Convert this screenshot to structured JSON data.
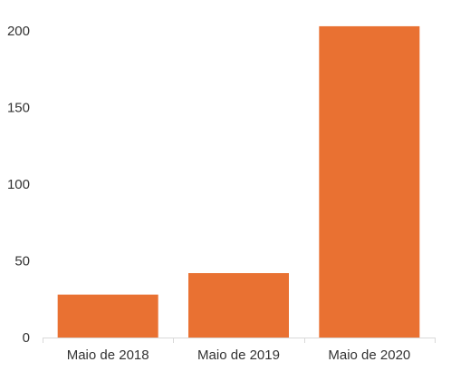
{
  "chart_data": {
    "type": "bar",
    "title": "",
    "xlabel": "",
    "ylabel": "",
    "categories": [
      "Maio de 2018",
      "Maio de 2019",
      "Maio de 2020"
    ],
    "values": [
      28,
      42,
      203
    ],
    "ylim": [
      0,
      200
    ],
    "yticks": [
      0,
      50,
      100,
      150,
      200
    ],
    "grid": false,
    "legend": "none",
    "colors": {
      "bar": "#E97132",
      "axis": "#D9D9D9",
      "text": "#333333"
    }
  }
}
